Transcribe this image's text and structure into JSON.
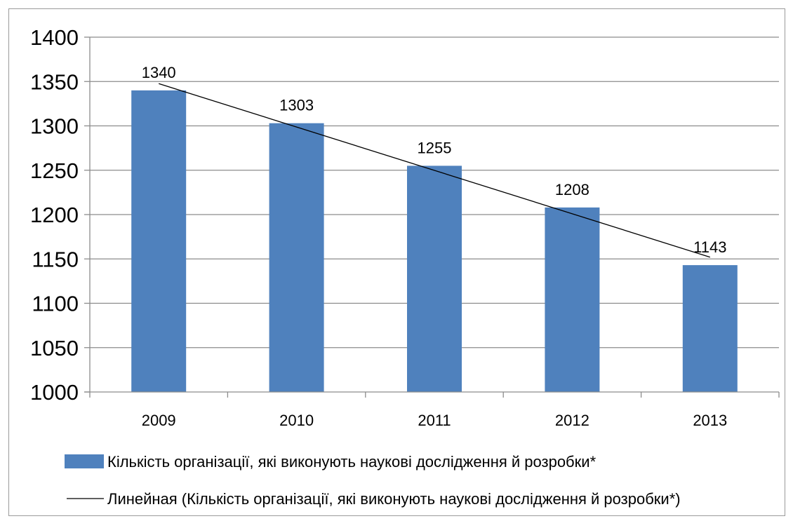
{
  "chart_data": {
    "type": "bar",
    "categories": [
      "2009",
      "2010",
      "2011",
      "2012",
      "2013"
    ],
    "series": [
      {
        "name": "Кількість організації, які виконують наукові дослідження й розробки*",
        "values": [
          1340,
          1303,
          1255,
          1208,
          1143
        ],
        "color": "#4f81bd"
      }
    ],
    "trendline": {
      "name": "Линейная (Кількість організації, які виконують наукові дослідження й розробки*)",
      "type": "linear",
      "color": "#000000"
    },
    "data_labels": [
      "1340",
      "1303",
      "1255",
      "1208",
      "1143"
    ],
    "ylim": [
      1000,
      1400
    ],
    "yticks": [
      "1000",
      "1050",
      "1100",
      "1150",
      "1200",
      "1250",
      "1300",
      "1350",
      "1400"
    ],
    "grid": true,
    "legend_position": "bottom",
    "gridline_color": "#8c8c8c",
    "axis_color": "#8c8c8c"
  }
}
